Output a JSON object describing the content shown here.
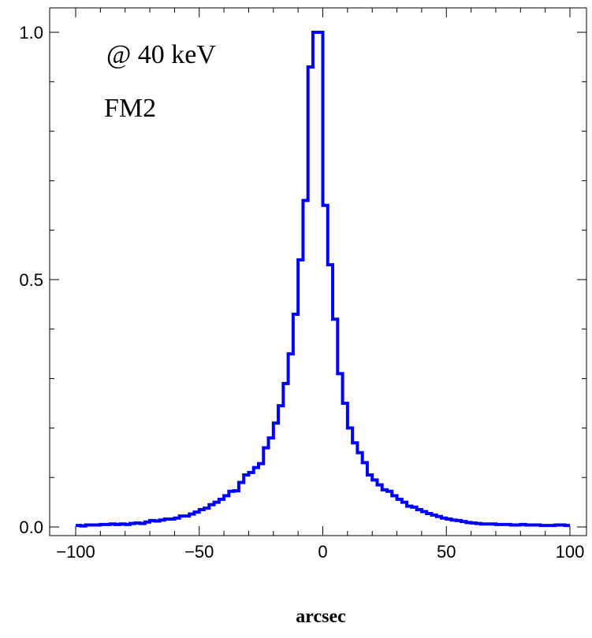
{
  "chart_data": {
    "type": "line",
    "step": true,
    "title": "",
    "xlabel": "arcsec",
    "ylabel": "",
    "xlim": [
      -105,
      105
    ],
    "ylim": [
      -0.03,
      1.04
    ],
    "x_ticks": [
      -100,
      -50,
      0,
      50,
      100
    ],
    "x_tick_labels": [
      "−100",
      "−50",
      "0",
      "50",
      "100"
    ],
    "y_ticks": [
      0.0,
      0.5,
      1.0
    ],
    "y_tick_labels": [
      "0.0",
      "0.5",
      "1.0"
    ],
    "annotations": [
      "@ 40 keV",
      "FM2"
    ],
    "grid": false,
    "line_color": "#0000ff",
    "series": [
      {
        "bin_width": 2,
        "x": [
          -100,
          -98,
          -96,
          -94,
          -92,
          -90,
          -88,
          -86,
          -84,
          -82,
          -80,
          -78,
          -76,
          -74,
          -72,
          -70,
          -68,
          -66,
          -64,
          -62,
          -60,
          -58,
          -56,
          -54,
          -52,
          -50,
          -48,
          -46,
          -44,
          -42,
          -40,
          -38,
          -36,
          -34,
          -32,
          -30,
          -28,
          -26,
          -24,
          -22,
          -20,
          -18,
          -16,
          -14,
          -12,
          -10,
          -8,
          -6,
          -4,
          -2,
          0,
          2,
          4,
          6,
          8,
          10,
          12,
          14,
          16,
          18,
          20,
          22,
          24,
          26,
          28,
          30,
          32,
          34,
          36,
          38,
          40,
          42,
          44,
          46,
          48,
          50,
          52,
          54,
          56,
          58,
          60,
          62,
          64,
          66,
          68,
          70,
          72,
          74,
          76,
          78,
          80,
          82,
          84,
          86,
          88,
          90,
          92,
          94,
          96,
          98
        ],
        "values": [
          0.003,
          0.002,
          0.004,
          0.004,
          0.004,
          0.005,
          0.005,
          0.006,
          0.005,
          0.006,
          0.005,
          0.007,
          0.008,
          0.007,
          0.01,
          0.013,
          0.012,
          0.014,
          0.016,
          0.016,
          0.018,
          0.022,
          0.022,
          0.026,
          0.03,
          0.035,
          0.038,
          0.045,
          0.05,
          0.056,
          0.063,
          0.072,
          0.073,
          0.09,
          0.105,
          0.11,
          0.12,
          0.128,
          0.16,
          0.18,
          0.21,
          0.245,
          0.29,
          0.35,
          0.43,
          0.54,
          0.66,
          0.93,
          1.0,
          1.0,
          0.65,
          0.53,
          0.42,
          0.31,
          0.25,
          0.2,
          0.17,
          0.15,
          0.13,
          0.105,
          0.095,
          0.085,
          0.075,
          0.072,
          0.063,
          0.056,
          0.05,
          0.042,
          0.04,
          0.035,
          0.031,
          0.027,
          0.024,
          0.021,
          0.018,
          0.016,
          0.014,
          0.013,
          0.011,
          0.009,
          0.008,
          0.007,
          0.006,
          0.006,
          0.006,
          0.005,
          0.005,
          0.005,
          0.004,
          0.004,
          0.005,
          0.004,
          0.004,
          0.004,
          0.003,
          0.003,
          0.003,
          0.004,
          0.004,
          0.003
        ]
      }
    ]
  }
}
